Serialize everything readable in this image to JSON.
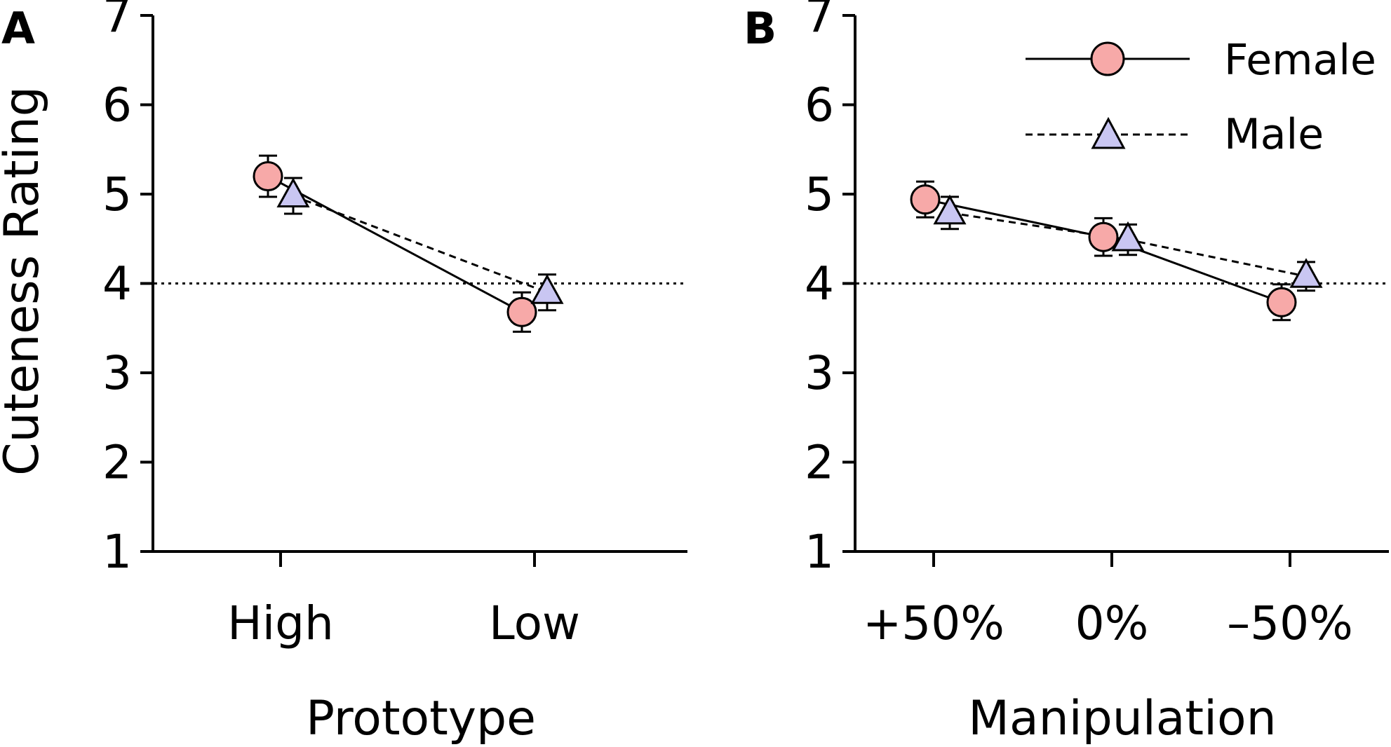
{
  "figure": {
    "y_axis_title": "Cuteness Rating",
    "legend": {
      "female": "Female",
      "male": "Male"
    },
    "colors": {
      "female_fill": "#f7a9a8",
      "male_fill": "#c9c6f2",
      "stroke": "#000000"
    }
  },
  "chart_data": [
    {
      "type": "line",
      "panel_label": "A",
      "xlabel": "Prototype",
      "ylabel": "Cuteness Rating",
      "categories": [
        "High",
        "Low"
      ],
      "ylim": [
        1,
        7
      ],
      "yticks": [
        "1",
        "2",
        "3",
        "4",
        "5",
        "6",
        "7"
      ],
      "reference_line": 4,
      "series": [
        {
          "name": "Female",
          "marker": "circle",
          "values": [
            5.2,
            3.68
          ],
          "error": [
            0.23,
            0.22
          ]
        },
        {
          "name": "Male",
          "marker": "triangle",
          "values": [
            4.98,
            3.9
          ],
          "error": [
            0.2,
            0.2
          ]
        }
      ]
    },
    {
      "type": "line",
      "panel_label": "B",
      "xlabel": "Manipulation",
      "ylabel": "",
      "categories": [
        "+50%",
        "0%",
        "–50%"
      ],
      "ylim": [
        1,
        7
      ],
      "yticks": [
        "1",
        "2",
        "3",
        "4",
        "5",
        "6",
        "7"
      ],
      "reference_line": 4,
      "series": [
        {
          "name": "Female",
          "marker": "circle",
          "values": [
            4.94,
            4.52,
            3.79
          ],
          "error": [
            0.2,
            0.21,
            0.2
          ]
        },
        {
          "name": "Male",
          "marker": "triangle",
          "values": [
            4.79,
            4.49,
            4.08
          ],
          "error": [
            0.18,
            0.17,
            0.16
          ]
        }
      ]
    }
  ]
}
